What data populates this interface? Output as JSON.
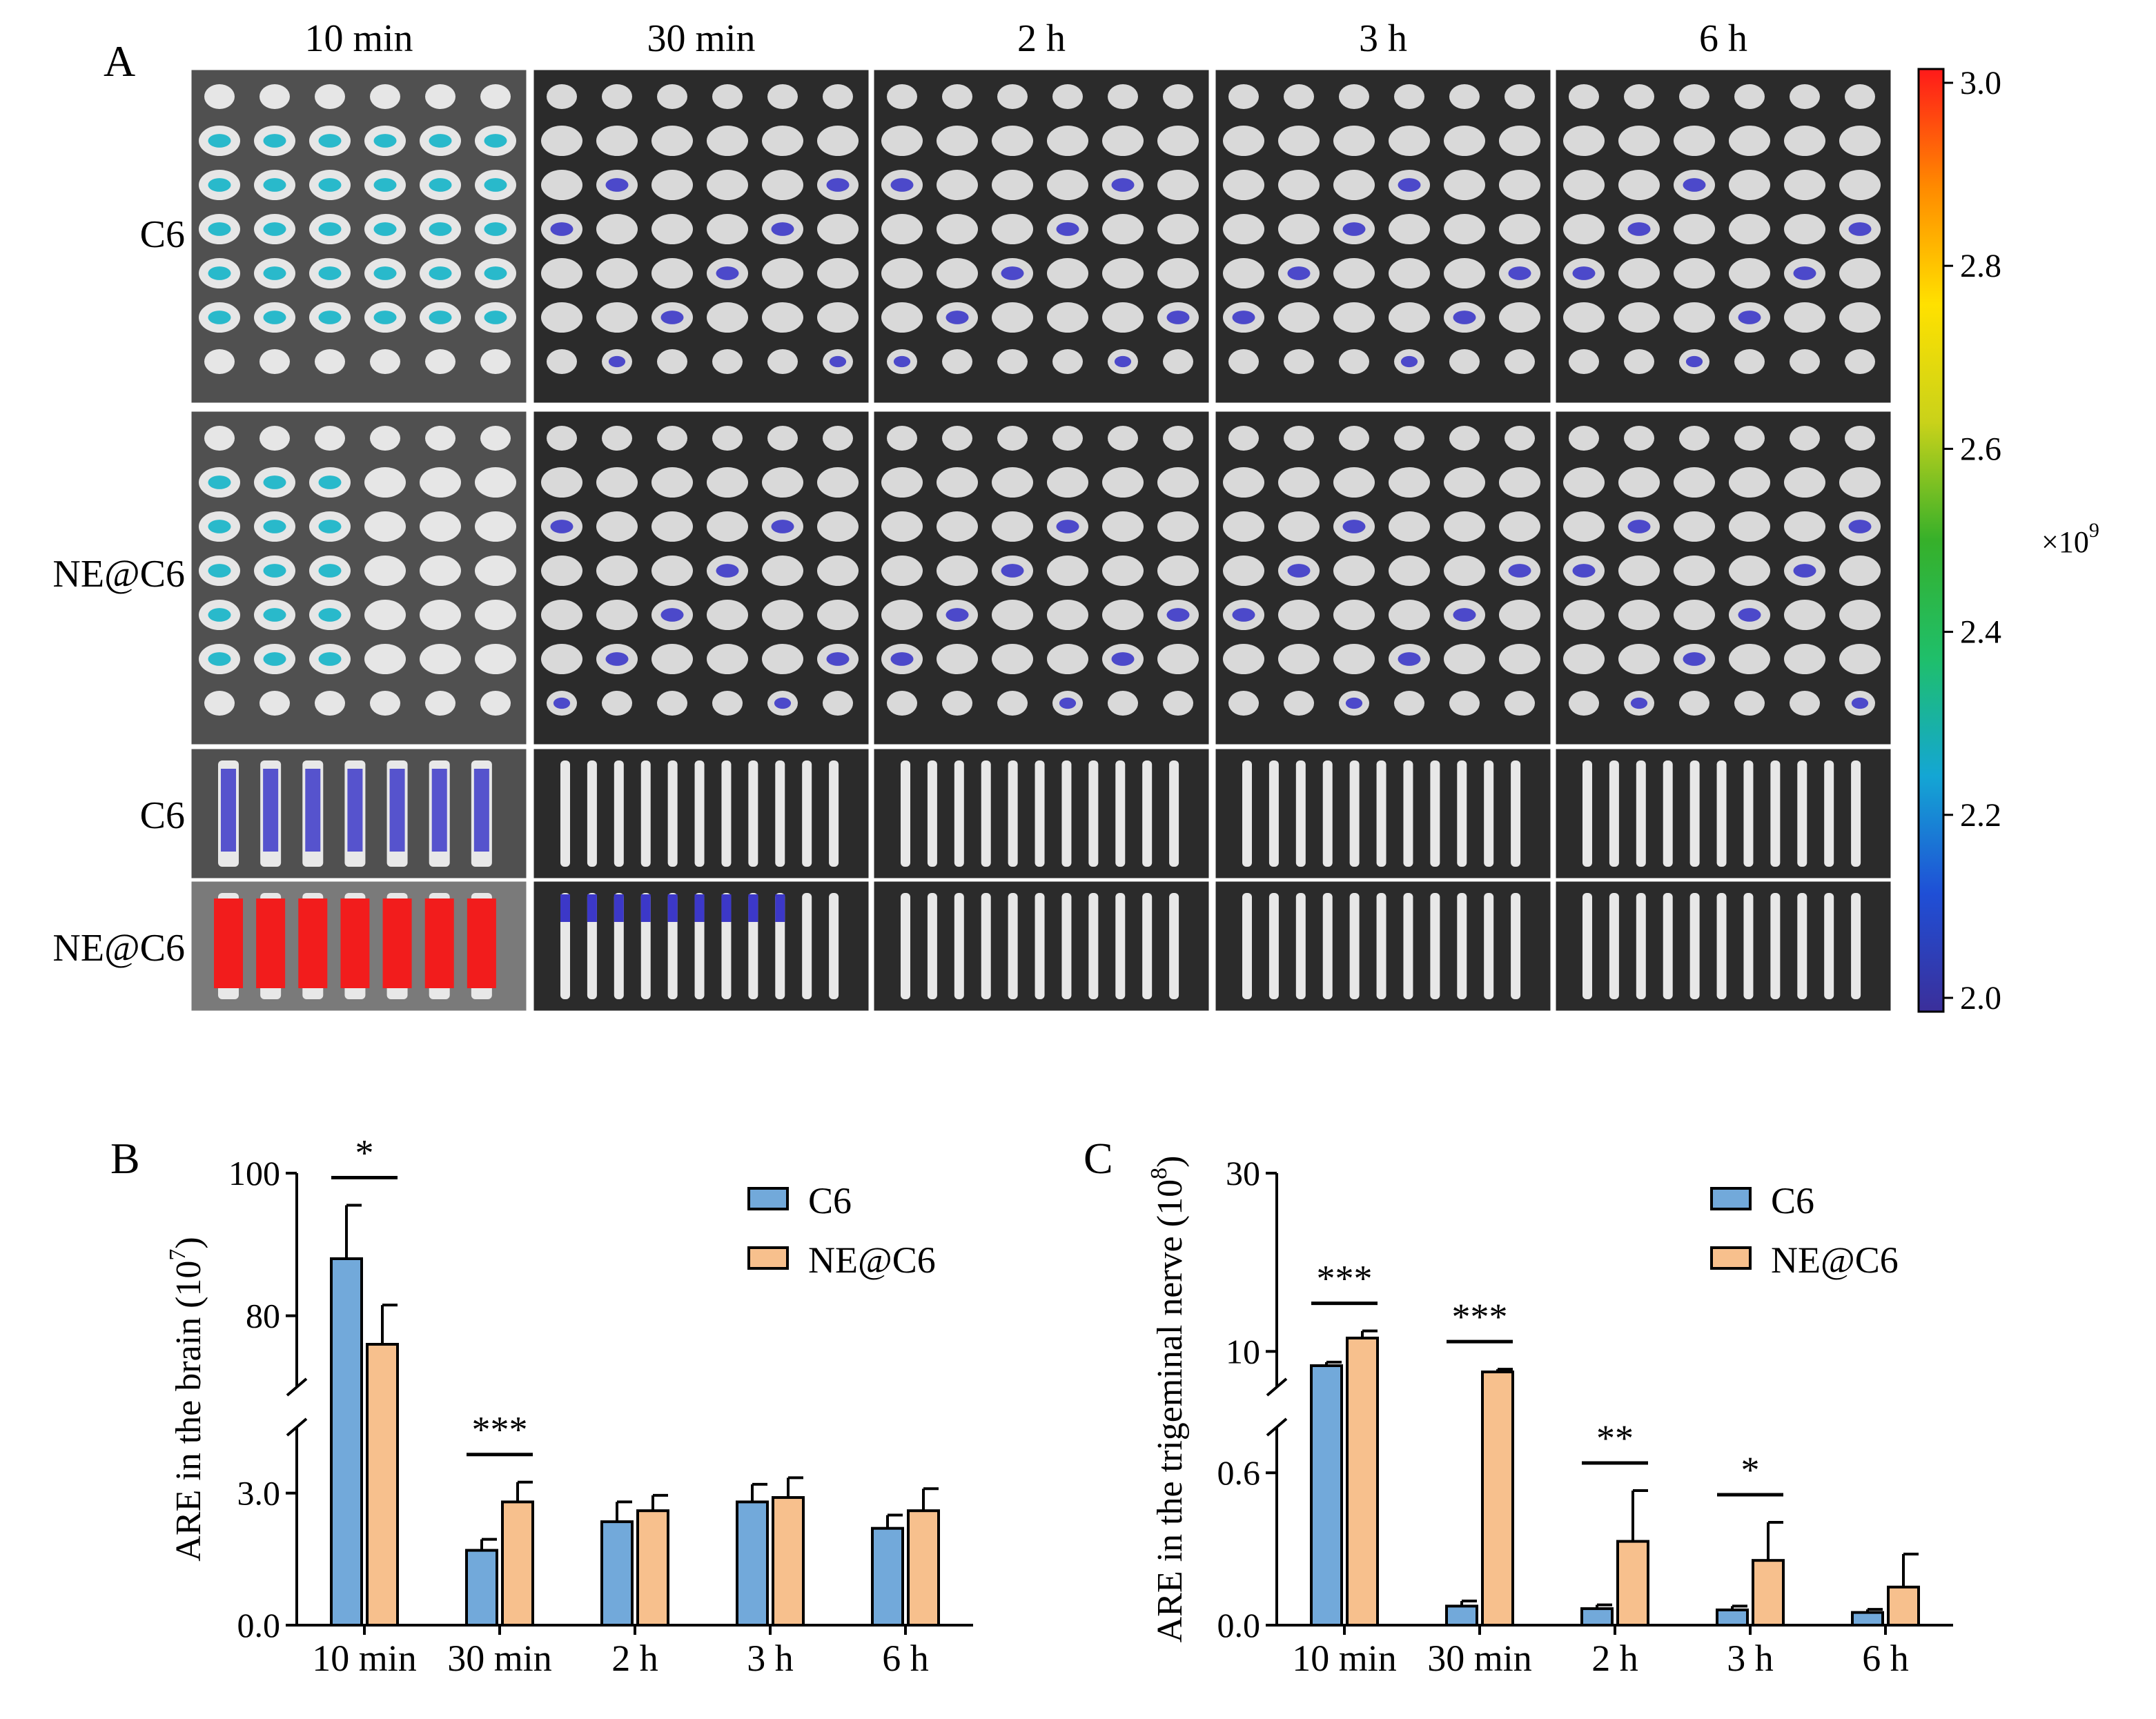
{
  "panel_labels": {
    "a": "A",
    "b": "B",
    "c": "C"
  },
  "imaging": {
    "timepoints": [
      "10 min",
      "30 min",
      "2 h",
      "3 h",
      "6 h"
    ],
    "row_labels": [
      "C6",
      "NE@C6",
      "C6",
      "NE@C6"
    ],
    "colorbar": {
      "ticks": [
        "3.0",
        "2.8",
        "2.6",
        "2.4",
        "2.2",
        "2.0"
      ],
      "min": 2.0,
      "max": 3.0,
      "unit_base": "×10",
      "unit_exp": "9",
      "colors": [
        "#3b2f9a",
        "#1f4fd6",
        "#14a6d4",
        "#1fbf6a",
        "#36b02a",
        "#c9d21a",
        "#ffe100",
        "#ff8a00",
        "#ff1a1a"
      ]
    },
    "roi_color_map": {
      "low": "#3c38c8",
      "mid": "#14b4c8",
      "high": "#f21c1c"
    }
  },
  "chart_data": [
    {
      "id": "B",
      "type": "bar",
      "title": "",
      "xlabel": "",
      "ylabel": "ARE in the brain (10",
      "ylabel_exp": "7",
      "ylabel_close": ")",
      "categories": [
        "10 min",
        "30 min",
        "2 h",
        "3 h",
        "6 h"
      ],
      "series": [
        {
          "name": "C6",
          "color": "#72a9da",
          "values": [
            88,
            1.7,
            2.35,
            2.8,
            2.2
          ],
          "errors": [
            7.5,
            0.25,
            0.45,
            0.4,
            0.3
          ]
        },
        {
          "name": "NE@C6",
          "color": "#f7c08d",
          "values": [
            76,
            2.8,
            2.6,
            2.9,
            2.6
          ],
          "errors": [
            5.5,
            0.45,
            0.35,
            0.45,
            0.5
          ]
        }
      ],
      "y_axis": {
        "type": "broken",
        "lower_segment": [
          0,
          4.5
        ],
        "upper_segment": [
          70,
          100
        ],
        "ticks": [
          {
            "value": 0,
            "label": "0.0"
          },
          {
            "value": 3,
            "label": "3.0"
          },
          {
            "value": 80,
            "label": "80"
          },
          {
            "value": 100,
            "label": "100"
          }
        ]
      },
      "significance": [
        {
          "category": "10 min",
          "label": "*"
        },
        {
          "category": "30 min",
          "label": "***"
        }
      ],
      "legend": "top-right"
    },
    {
      "id": "C",
      "type": "bar",
      "title": "",
      "xlabel": "",
      "ylabel": "ARE in the trigeminal nerve (10",
      "ylabel_exp": "8",
      "ylabel_close": ")",
      "categories": [
        "10 min",
        "30 min",
        "2 h",
        "3 h",
        "6 h"
      ],
      "series": [
        {
          "name": "C6",
          "color": "#72a9da",
          "values": [
            8.4,
            0.075,
            0.065,
            0.06,
            0.05
          ],
          "errors": [
            0.4,
            0.02,
            0.015,
            0.015,
            0.012
          ]
        },
        {
          "name": "NE@C6",
          "color": "#f7c08d",
          "values": [
            11.5,
            7.7,
            0.33,
            0.255,
            0.15
          ],
          "errors": [
            0.8,
            0.3,
            0.2,
            0.15,
            0.13
          ]
        }
      ],
      "y_axis": {
        "type": "broken",
        "lower_segment": [
          0,
          0.78
        ],
        "upper_segment": [
          6,
          30
        ],
        "ticks": [
          {
            "value": 0,
            "label": "0.0"
          },
          {
            "value": 0.6,
            "label": "0.6"
          },
          {
            "value": 10,
            "label": "10"
          },
          {
            "value": 30,
            "label": "30"
          }
        ]
      },
      "significance": [
        {
          "category": "10 min",
          "label": "***"
        },
        {
          "category": "30 min",
          "label": "***"
        },
        {
          "category": "2 h",
          "label": "**"
        },
        {
          "category": "3 h",
          "label": "*"
        }
      ],
      "legend": "top-right"
    }
  ]
}
